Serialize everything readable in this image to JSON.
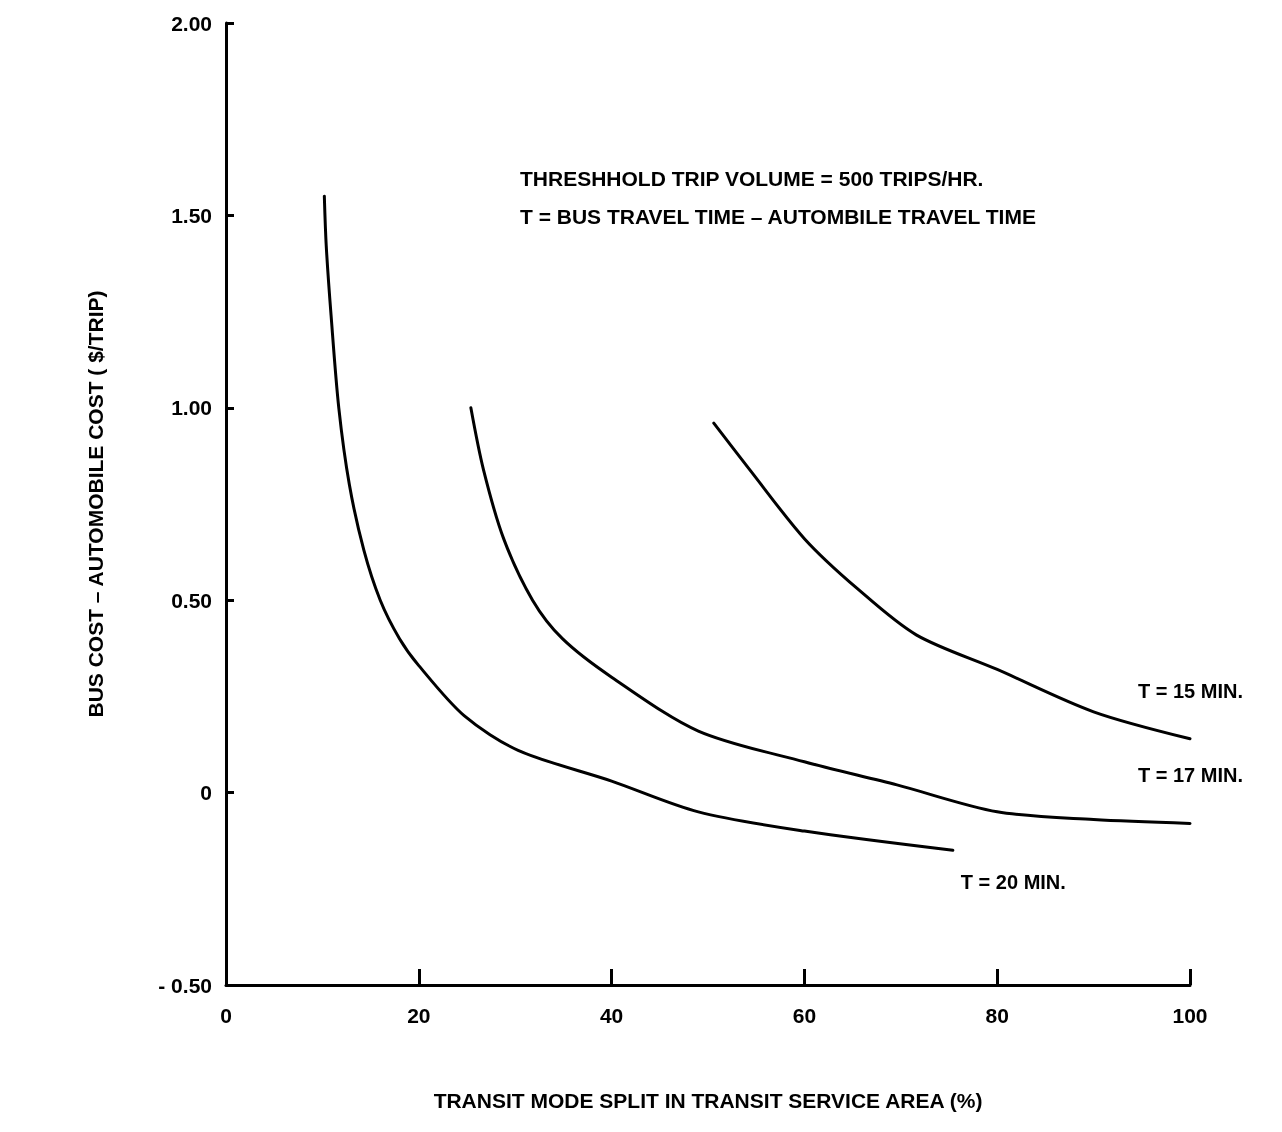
{
  "chart_data": {
    "type": "line",
    "xlabel": "TRANSIT MODE SPLIT IN TRANSIT SERVICE AREA (%)",
    "ylabel": "BUS COST – AUTOMOBILE COST ( $/TRIP)",
    "annotations": [
      "THRESHHOLD TRIP VOLUME = 500 TRIPS/HR.",
      "T = BUS TRAVEL TIME – AUTOMBILE TRAVEL TIME"
    ],
    "xlim": [
      0,
      100
    ],
    "xticks": [
      0,
      20,
      40,
      60,
      80,
      100
    ],
    "ylim": [
      -0.5,
      2
    ],
    "yticks": [
      {
        "value": -0.5,
        "label": "- 0.50"
      },
      {
        "value": 0,
        "label": "0"
      },
      {
        "value": 0.5,
        "label": "0.50"
      },
      {
        "value": 1,
        "label": "1.00"
      },
      {
        "value": 1.5,
        "label": "1.50"
      },
      {
        "value": 2,
        "label": "2.00"
      }
    ],
    "grid": false,
    "legend": false,
    "marker": "none",
    "line_style": "solid",
    "series": [
      {
        "name": "T = 15 MIN.",
        "color": "#000000",
        "x": [
          50.6,
          54.3,
          60,
          65.5,
          71.6,
          80,
          90,
          100
        ],
        "values": [
          0.96,
          0.84,
          0.66,
          0.53,
          0.41,
          0.32,
          0.21,
          0.14
        ]
      },
      {
        "name": "T = 17 MIN.",
        "color": "#000000",
        "x": [
          25.4,
          26.7,
          28.8,
          31.8,
          34.9,
          40,
          49,
          60,
          69.6,
          80,
          90,
          100
        ],
        "values": [
          1.0,
          0.84,
          0.66,
          0.5,
          0.4,
          0.3,
          0.16,
          0.08,
          0.02,
          -0.05,
          -0.07,
          -0.08
        ]
      },
      {
        "name": "T = 20 MIN.",
        "color": "#000000",
        "x": [
          10.2,
          10.4,
          10.9,
          11.7,
          12.8,
          14.3,
          16,
          18,
          20,
          24.7,
          30.3,
          40,
          49,
          60,
          75.4
        ],
        "values": [
          1.55,
          1.42,
          1.24,
          1.0,
          0.8,
          0.63,
          0.5,
          0.4,
          0.33,
          0.2,
          0.11,
          0.03,
          -0.05,
          -0.1,
          -0.15
        ]
      }
    ]
  }
}
